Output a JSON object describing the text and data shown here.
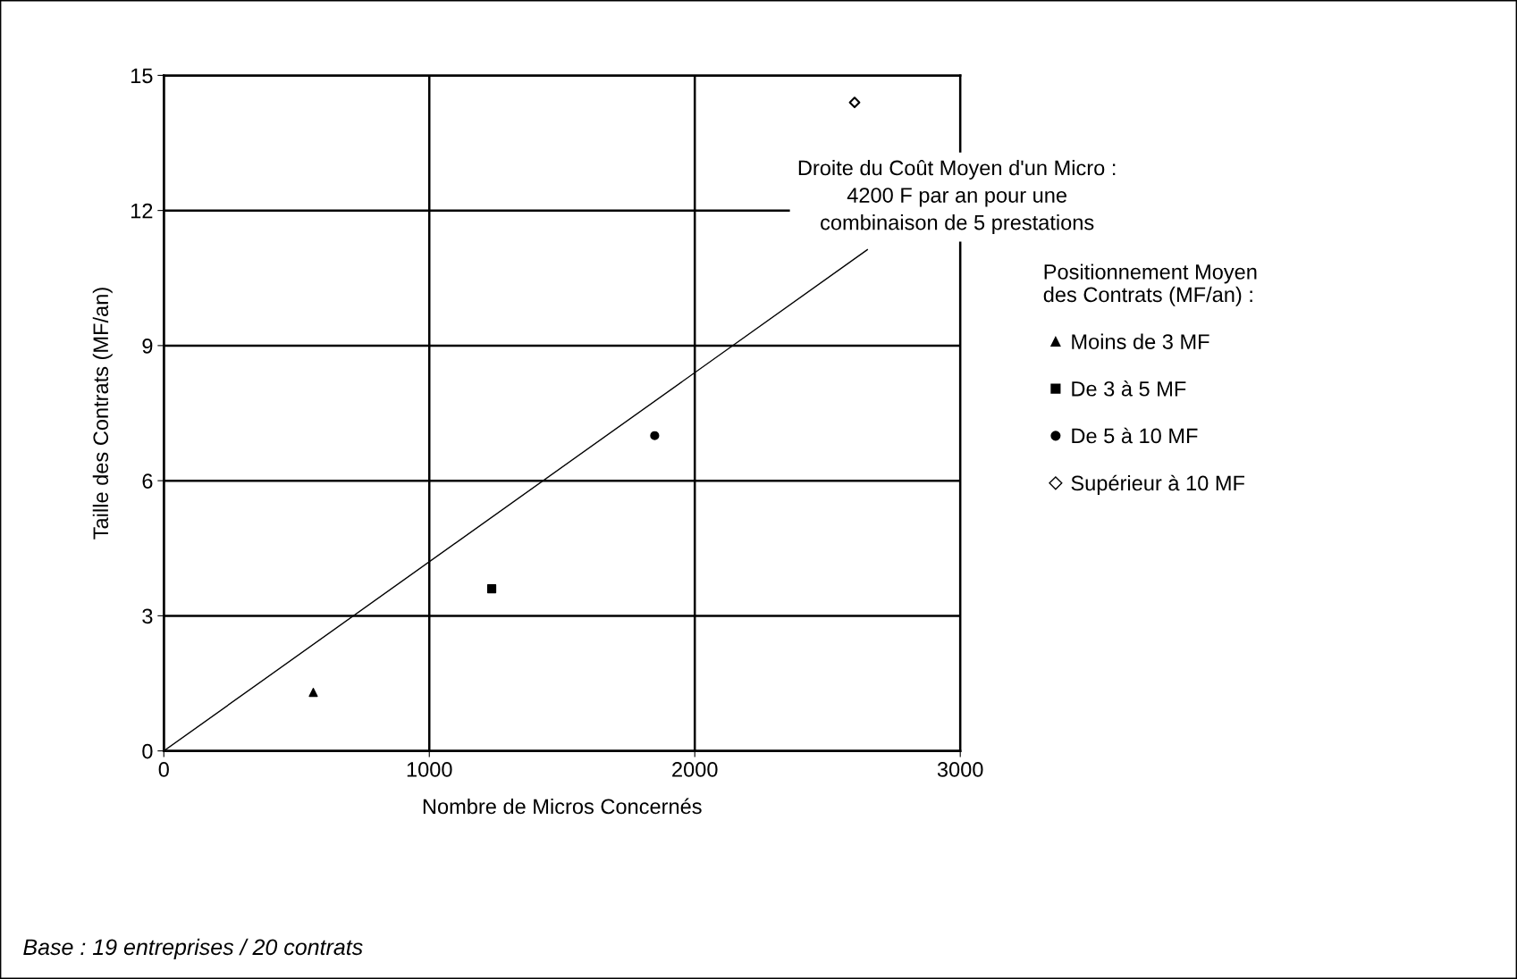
{
  "chart_data": {
    "type": "scatter",
    "xlabel": "Nombre de Micros Concernés",
    "ylabel": "Taille des Contrats (MF/an)",
    "legend_title": "Positionnement Moyen\ndes Contrats (MF/an) :",
    "series": [
      {
        "name": "Moins de 3 MF",
        "color": "#000000",
        "marker": "triangle",
        "x": [
          563
        ],
        "values": [
          1.3
        ]
      },
      {
        "name": "De 3 à 5 MF",
        "color": "#000000",
        "marker": "square",
        "x": [
          1235
        ],
        "values": [
          3.6
        ]
      },
      {
        "name": "De 5 à 10 MF",
        "color": "#000000",
        "marker": "circle",
        "x": [
          1849
        ],
        "values": [
          7.0
        ]
      },
      {
        "name": "Supérieur à 10 MF",
        "color": "#000000",
        "marker": "diamond",
        "x": [
          2602
        ],
        "values": [
          14.4
        ]
      },
      {
        "type": "line",
        "color": "#000000",
        "marker": "none",
        "x": [
          0,
          2650
        ],
        "values": [
          0,
          11.13
        ]
      }
    ],
    "xlim": [
      0,
      3000
    ],
    "xticks": [
      0,
      1000,
      2000,
      3000
    ],
    "ylim": [
      0,
      15
    ],
    "yticks": [
      0,
      3,
      6,
      9,
      12,
      15
    ],
    "grid": true,
    "legend": "right",
    "annotations": [
      "Droite du Coût Moyen d'un Micro :\n4200 F par an pour une\ncombinaison de 5 prestations",
      "Base : 19 entreprises / 20 contrats"
    ]
  }
}
